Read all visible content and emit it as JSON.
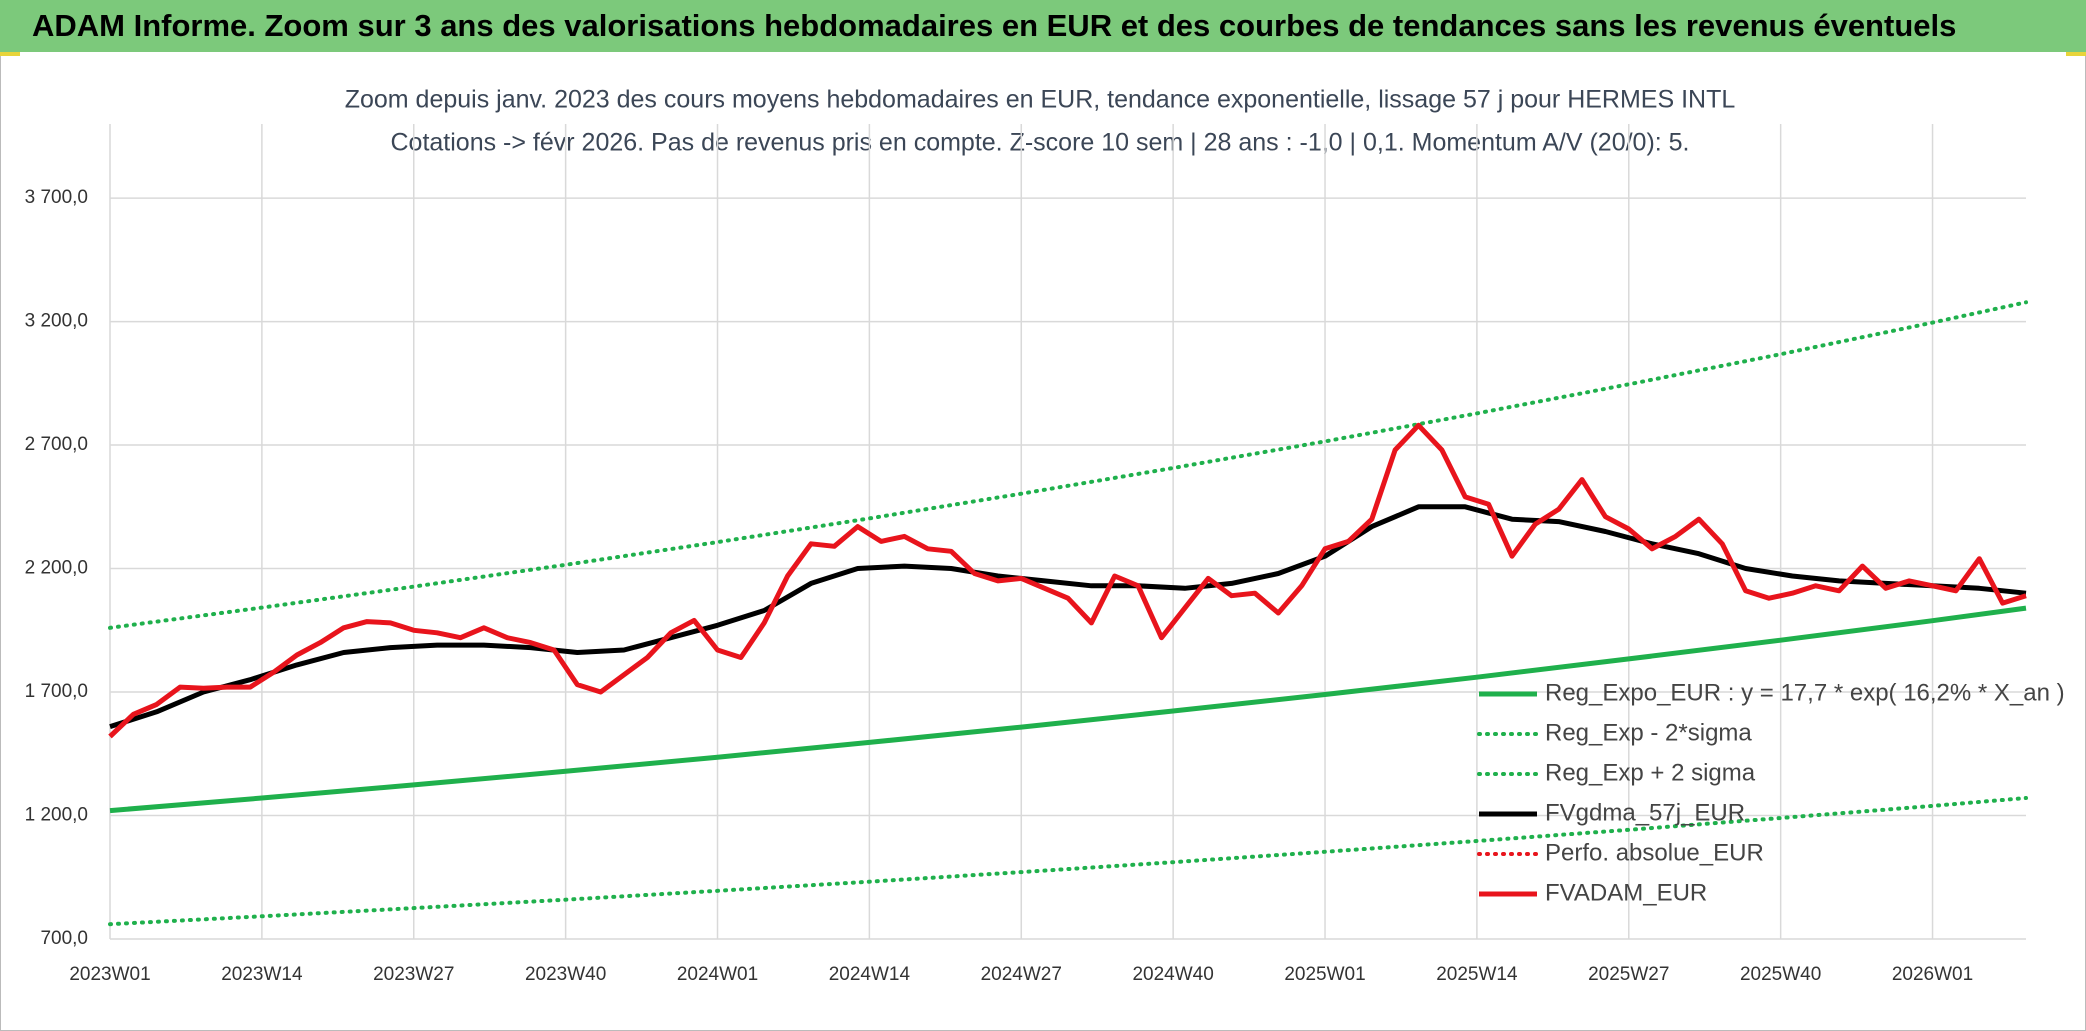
{
  "header": {
    "title": "ADAM Informe. Zoom sur 3 ans des valorisations hebdomadaires en EUR et des courbes de tendances sans les revenus éventuels"
  },
  "chart_data": {
    "type": "line",
    "title": "Zoom depuis janv. 2023 des cours moyens hebdomadaires en EUR, tendance exponentielle, lissage 57 j pour HERMES INTL",
    "subtitle": "Cotations -> févr 2026. Pas de revenus pris en compte. Z-score 10 sem | 28 ans : -1,0 | 0,1. Momentum A/V (20/0): 5.",
    "xlim": [
      0,
      164
    ],
    "xticks": [
      {
        "value": 0,
        "label": "2023W01"
      },
      {
        "value": 13,
        "label": "2023W14"
      },
      {
        "value": 26,
        "label": "2023W27"
      },
      {
        "value": 39,
        "label": "2023W40"
      },
      {
        "value": 52,
        "label": "2024W01"
      },
      {
        "value": 65,
        "label": "2024W14"
      },
      {
        "value": 78,
        "label": "2024W27"
      },
      {
        "value": 91,
        "label": "2024W40"
      },
      {
        "value": 104,
        "label": "2025W01"
      },
      {
        "value": 117,
        "label": "2025W14"
      },
      {
        "value": 130,
        "label": "2025W27"
      },
      {
        "value": 143,
        "label": "2025W40"
      },
      {
        "value": 156,
        "label": "2026W01"
      }
    ],
    "ylim": [
      700,
      4000
    ],
    "yticks": [
      {
        "value": 700,
        "label": "700,0"
      },
      {
        "value": 1200,
        "label": "1 200,0"
      },
      {
        "value": 1700,
        "label": "1 700,0"
      },
      {
        "value": 2200,
        "label": "2 200,0"
      },
      {
        "value": 2700,
        "label": "2 700,0"
      },
      {
        "value": 3200,
        "label": "3 200,0"
      },
      {
        "value": 3700,
        "label": "3 700,0"
      }
    ],
    "grid": true,
    "legend": "lower right",
    "series": [
      {
        "name": "Reg_Expo_EUR : y = 17,7 * exp( 16,2% *  X_an )",
        "color": "#1fb04c",
        "style": "solid",
        "x": [
          0,
          13,
          26,
          39,
          52,
          65,
          78,
          91,
          104,
          117,
          130,
          143,
          156,
          164
        ],
        "values": [
          1220,
          1271,
          1324,
          1379,
          1436,
          1496,
          1558,
          1623,
          1690,
          1760,
          1834,
          1910,
          1989,
          2040
        ]
      },
      {
        "name": "Reg_Exp - 2*sigma",
        "color": "#1fb04c",
        "style": "dotted",
        "x": [
          0,
          13,
          26,
          39,
          52,
          65,
          78,
          91,
          104,
          117,
          130,
          143,
          156,
          164
        ],
        "values": [
          760,
          792,
          825,
          859,
          895,
          932,
          971,
          1011,
          1053,
          1097,
          1142,
          1190,
          1239,
          1271
        ]
      },
      {
        "name": "Reg_Exp + 2 sigma",
        "color": "#1fb04c",
        "style": "dotted",
        "x": [
          0,
          13,
          26,
          39,
          52,
          65,
          78,
          91,
          104,
          117,
          130,
          143,
          156,
          164
        ],
        "values": [
          1960,
          2042,
          2127,
          2215,
          2307,
          2403,
          2503,
          2607,
          2715,
          2828,
          2946,
          3068,
          3196,
          3278
        ]
      },
      {
        "name": "FVgdma_57j_EUR",
        "color": "#000000",
        "style": "solid",
        "x": [
          0,
          4,
          8,
          12,
          16,
          20,
          24,
          28,
          32,
          36,
          40,
          44,
          48,
          52,
          56,
          60,
          64,
          68,
          72,
          76,
          80,
          84,
          88,
          92,
          96,
          100,
          104,
          108,
          112,
          116,
          120,
          124,
          128,
          132,
          136,
          140,
          144,
          148,
          152,
          156,
          160,
          164
        ],
        "values": [
          1560,
          1620,
          1700,
          1750,
          1810,
          1860,
          1880,
          1890,
          1890,
          1880,
          1860,
          1870,
          1920,
          1970,
          2030,
          2140,
          2200,
          2210,
          2200,
          2170,
          2150,
          2130,
          2130,
          2120,
          2140,
          2180,
          2250,
          2370,
          2450,
          2450,
          2400,
          2390,
          2350,
          2300,
          2260,
          2200,
          2170,
          2150,
          2140,
          2130,
          2120,
          2100
        ]
      },
      {
        "name": "Perfo. absolue_EUR",
        "color": "#e8141c",
        "style": "dotted",
        "x": [],
        "values": []
      },
      {
        "name": "FVADAM_EUR",
        "color": "#e8141c",
        "style": "solid",
        "x": [
          0,
          2,
          4,
          6,
          8,
          10,
          12,
          14,
          16,
          18,
          20,
          22,
          24,
          26,
          28,
          30,
          32,
          34,
          36,
          38,
          40,
          42,
          44,
          46,
          48,
          50,
          52,
          54,
          56,
          58,
          60,
          62,
          64,
          66,
          68,
          70,
          72,
          74,
          76,
          78,
          80,
          82,
          84,
          86,
          88,
          90,
          92,
          94,
          96,
          98,
          100,
          102,
          104,
          106,
          108,
          110,
          112,
          114,
          116,
          118,
          120,
          122,
          124,
          126,
          128,
          130,
          132,
          134,
          136,
          138,
          140,
          142,
          144,
          146,
          148,
          150,
          152,
          154,
          156,
          158,
          160,
          162,
          164
        ],
        "values": [
          1520,
          1610,
          1650,
          1720,
          1715,
          1720,
          1720,
          1780,
          1850,
          1900,
          1960,
          1985,
          1980,
          1950,
          1940,
          1920,
          1960,
          1920,
          1900,
          1870,
          1730,
          1700,
          1770,
          1840,
          1940,
          1990,
          1870,
          1840,
          1980,
          2170,
          2300,
          2290,
          2370,
          2310,
          2330,
          2280,
          2270,
          2180,
          2150,
          2160,
          2120,
          2080,
          1980,
          2170,
          2130,
          1920,
          2040,
          2160,
          2090,
          2100,
          2020,
          2130,
          2280,
          2310,
          2400,
          2680,
          2780,
          2680,
          2490,
          2460,
          2250,
          2380,
          2440,
          2560,
          2410,
          2360,
          2280,
          2330,
          2400,
          2300,
          2110,
          2080,
          2100,
          2130,
          2110,
          2210,
          2120,
          2150,
          2130,
          2110,
          2240,
          2060,
          2090
        ]
      }
    ]
  }
}
